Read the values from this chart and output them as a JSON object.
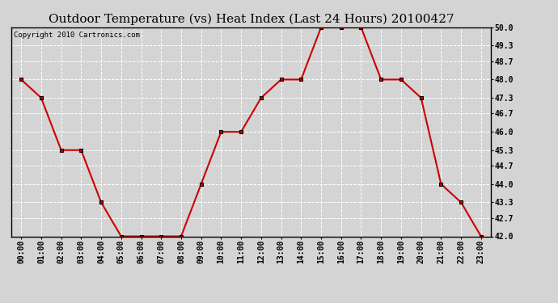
{
  "title": "Outdoor Temperature (vs) Heat Index (Last 24 Hours) 20100427",
  "copyright_text": "Copyright 2010 Cartronics.com",
  "x_labels": [
    "00:00",
    "01:00",
    "02:00",
    "03:00",
    "04:00",
    "05:00",
    "06:00",
    "07:00",
    "08:00",
    "09:00",
    "10:00",
    "11:00",
    "12:00",
    "13:00",
    "14:00",
    "15:00",
    "16:00",
    "17:00",
    "18:00",
    "19:00",
    "20:00",
    "21:00",
    "22:00",
    "23:00"
  ],
  "y_values": [
    48.0,
    47.3,
    45.3,
    45.3,
    43.3,
    42.0,
    42.0,
    42.0,
    42.0,
    44.0,
    46.0,
    46.0,
    47.3,
    48.0,
    48.0,
    50.0,
    50.0,
    50.0,
    48.0,
    48.0,
    47.3,
    44.0,
    43.3,
    42.0
  ],
  "line_color": "#cc0000",
  "marker": "s",
  "marker_size": 3,
  "marker_color": "#cc0000",
  "bg_color": "#d4d4d4",
  "plot_bg_color": "#d4d4d4",
  "grid_color": "#ffffff",
  "ylim": [
    42.0,
    50.0
  ],
  "ytick_values": [
    42.0,
    42.7,
    43.3,
    44.0,
    44.7,
    45.3,
    46.0,
    46.7,
    47.3,
    48.0,
    48.7,
    49.3,
    50.0
  ],
  "title_fontsize": 11,
  "axis_label_fontsize": 7,
  "copyright_fontsize": 6.5
}
